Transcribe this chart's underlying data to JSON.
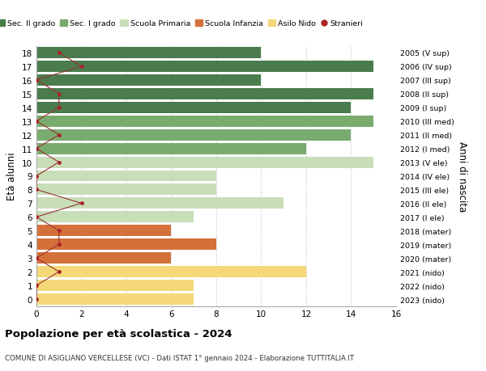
{
  "ages": [
    18,
    17,
    16,
    15,
    14,
    13,
    12,
    11,
    10,
    9,
    8,
    7,
    6,
    5,
    4,
    3,
    2,
    1,
    0
  ],
  "years": [
    "2005 (V sup)",
    "2006 (IV sup)",
    "2007 (III sup)",
    "2008 (II sup)",
    "2009 (I sup)",
    "2010 (III med)",
    "2011 (II med)",
    "2012 (I med)",
    "2013 (V ele)",
    "2014 (IV ele)",
    "2015 (III ele)",
    "2016 (II ele)",
    "2017 (I ele)",
    "2018 (mater)",
    "2019 (mater)",
    "2020 (mater)",
    "2021 (nido)",
    "2022 (nido)",
    "2023 (nido)"
  ],
  "bar_values": [
    10,
    15,
    10,
    15,
    14,
    15,
    14,
    12,
    15,
    8,
    8,
    11,
    7,
    6,
    8,
    6,
    12,
    7,
    7
  ],
  "bar_colors": [
    "#4a7c4e",
    "#4a7c4e",
    "#4a7c4e",
    "#4a7c4e",
    "#4a7c4e",
    "#7aab6e",
    "#7aab6e",
    "#7aab6e",
    "#c8deb8",
    "#c8deb8",
    "#c8deb8",
    "#c8deb8",
    "#c8deb8",
    "#d4703a",
    "#d4703a",
    "#d4703a",
    "#f5d878",
    "#f5d878",
    "#f5d878"
  ],
  "stranieri_values": [
    1,
    2,
    0,
    1,
    1,
    0,
    1,
    0,
    1,
    0,
    0,
    2,
    0,
    1,
    1,
    0,
    1,
    0,
    0
  ],
  "title": "Popolazione per età scolastica - 2024",
  "subtitle": "COMUNE DI ASIGLIANO VERCELLESE (VC) - Dati ISTAT 1° gennaio 2024 - Elaborazione TUTTITALIA.IT",
  "ylabel": "Età alunni",
  "right_ylabel": "Anni di nascita",
  "xlim": [
    0,
    16
  ],
  "xticks": [
    0,
    2,
    4,
    6,
    8,
    10,
    12,
    14,
    16
  ],
  "legend_labels": [
    "Sec. II grado",
    "Sec. I grado",
    "Scuola Primaria",
    "Scuola Infanzia",
    "Asilo Nido",
    "Stranieri"
  ],
  "legend_colors": [
    "#4a7c4e",
    "#7aab6e",
    "#c8deb8",
    "#d4703a",
    "#f5d878",
    "#cc2222"
  ],
  "bar_height": 0.82,
  "background_color": "#ffffff",
  "grid_color": "#cccccc",
  "stranieri_color": "#aa2222",
  "stranieri_line_color": "#993333"
}
